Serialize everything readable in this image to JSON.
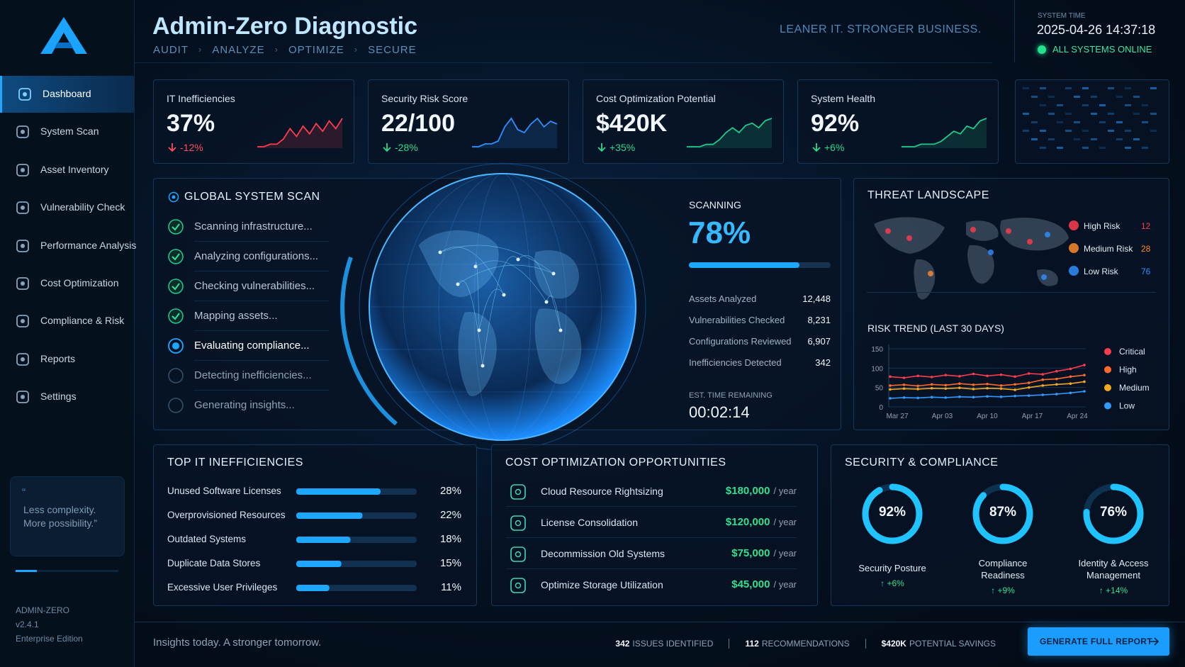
{
  "header": {
    "title": "Admin-Zero Diagnostic",
    "steps": [
      "AUDIT",
      "ANALYZE",
      "OPTIMIZE",
      "SECURE"
    ],
    "tagline": "LEANER IT. STRONGER BUSINESS.",
    "time_label": "SYSTEM TIME",
    "time": "2025-04-26 14:37:18",
    "status": "ALL SYSTEMS ONLINE"
  },
  "sidebar": {
    "nav": [
      "Dashboard",
      "System Scan",
      "Asset Inventory",
      "Vulnerability Check",
      "Performance Analysis",
      "Cost Optimization",
      "Compliance & Risk",
      "Reports",
      "Settings"
    ],
    "active": 0,
    "quote": [
      "Less complexity.",
      "More possibility.”"
    ],
    "product": "ADMIN-ZERO",
    "version": "v2.4.1",
    "edition": "Enterprise Edition"
  },
  "kpis": [
    {
      "label": "IT Inefficiencies",
      "value": "37%",
      "change": "-12%",
      "change_color": "#ff4d5e",
      "spark_color": "#ff3b4e",
      "trend": [
        2,
        2,
        3,
        3,
        5,
        9,
        6,
        10,
        7,
        11,
        8,
        12,
        9,
        13
      ]
    },
    {
      "label": "Security Risk Score",
      "value": "22/100",
      "change": "-28%",
      "change_color": "#2bd98a",
      "spark_color": "#2f8fff",
      "trend": [
        2,
        2,
        3,
        3,
        4,
        9,
        12,
        8,
        7,
        10,
        12,
        9,
        11,
        10
      ]
    },
    {
      "label": "Cost Optimization Potential",
      "value": "$420K",
      "change": "+35%",
      "change_color": "#2bd98a",
      "spark_color": "#21c98a",
      "trend": [
        2,
        2,
        2,
        3,
        3,
        5,
        8,
        10,
        8,
        11,
        12,
        10,
        13,
        14
      ]
    },
    {
      "label": "System Health",
      "value": "92%",
      "change": "+6%",
      "change_color": "#2bd98a",
      "spark_color": "#21c98a",
      "trend": [
        2,
        2,
        2,
        3,
        3,
        3,
        4,
        6,
        8,
        7,
        10,
        9,
        12,
        13
      ]
    }
  ],
  "scan": {
    "title": "GLOBAL SYSTEM SCAN",
    "steps": [
      {
        "label": "Scanning infrastructure...",
        "status": "done"
      },
      {
        "label": "Analyzing configurations...",
        "status": "done"
      },
      {
        "label": "Checking vulnerabilities...",
        "status": "done"
      },
      {
        "label": "Mapping assets...",
        "status": "done"
      },
      {
        "label": "Evaluating compliance...",
        "status": "active"
      },
      {
        "label": "Detecting inefficiencies...",
        "status": "pending"
      },
      {
        "label": "Generating insights...",
        "status": "pending"
      }
    ],
    "status_label": "SCANNING",
    "progress": {
      "value": 78,
      "label": "78%"
    },
    "stats": [
      {
        "label": "Assets Analyzed",
        "value": "12,448"
      },
      {
        "label": "Vulnerabilities Checked",
        "value": "8,231"
      },
      {
        "label": "Configurations Reviewed",
        "value": "6,907"
      },
      {
        "label": "Inefficiencies Detected",
        "value": "342"
      }
    ],
    "eta_label": "EST. TIME REMAINING",
    "eta": "00:02:14"
  },
  "threats": {
    "title": "THREAT LANDSCAPE",
    "levels": [
      {
        "label": "High Risk",
        "count": "12",
        "color": "#ff3b4e"
      },
      {
        "label": "Medium Risk",
        "count": "28",
        "color": "#ff8a2a"
      },
      {
        "label": "Low Risk",
        "count": "76",
        "color": "#2f8fff"
      }
    ]
  },
  "risk_trend": {
    "title": "RISK TREND (LAST 30 DAYS)",
    "ylim": [
      0,
      150
    ],
    "yticks": [
      0,
      50,
      100,
      150
    ],
    "x_labels": [
      "Mar 27",
      "Apr 03",
      "Apr 10",
      "Apr 17",
      "Apr 24"
    ],
    "series": [
      {
        "name": "Critical",
        "color": "#ff3b4e",
        "values": [
          78,
          75,
          80,
          77,
          82,
          79,
          85,
          80,
          83,
          78,
          86,
          84,
          92,
          98,
          108
        ]
      },
      {
        "name": "High",
        "color": "#ff6a2a",
        "values": [
          55,
          57,
          54,
          58,
          56,
          60,
          57,
          59,
          55,
          58,
          62,
          70,
          72,
          78,
          82
        ]
      },
      {
        "name": "Medium",
        "color": "#f5a623",
        "values": [
          45,
          47,
          46,
          48,
          47,
          49,
          46,
          48,
          47,
          44,
          50,
          55,
          58,
          60,
          65
        ]
      },
      {
        "name": "Low",
        "color": "#2f9bff",
        "values": [
          22,
          24,
          23,
          25,
          24,
          26,
          25,
          27,
          26,
          28,
          29,
          31,
          33,
          36,
          40
        ]
      }
    ]
  },
  "inefficiencies": {
    "title": "TOP IT INEFFICIENCIES",
    "items": [
      {
        "label": "Unused Software Licenses",
        "value": 28,
        "value_label": "28%"
      },
      {
        "label": "Overprovisioned Resources",
        "value": 22,
        "value_label": "22%"
      },
      {
        "label": "Outdated Systems",
        "value": 18,
        "value_label": "18%"
      },
      {
        "label": "Duplicate Data Stores",
        "value": 15,
        "value_label": "15%"
      },
      {
        "label": "Excessive User Privileges",
        "value": 11,
        "value_label": "11%"
      }
    ]
  },
  "cost": {
    "title": "COST OPTIMIZATION OPPORTUNITIES",
    "items": [
      {
        "label": "Cloud Resource Rightsizing",
        "amount": "$180,000",
        "unit": "/ year"
      },
      {
        "label": "License Consolidation",
        "amount": "$120,000",
        "unit": "/ year"
      },
      {
        "label": "Decommission Old Systems",
        "amount": "$75,000",
        "unit": "/ year"
      },
      {
        "label": "Optimize Storage Utilization",
        "amount": "$45,000",
        "unit": "/ year"
      }
    ]
  },
  "security": {
    "title": "SECURITY & COMPLIANCE",
    "items": [
      {
        "name": "Security Posture",
        "value": 92,
        "value_label": "92%",
        "change": "+6%"
      },
      {
        "name": "Compliance Readiness",
        "value": 87,
        "value_label": "87%",
        "change": "+9%"
      },
      {
        "name": "Identity & Access Management",
        "value": 76,
        "value_label": "76%",
        "change": "+14%"
      }
    ]
  },
  "footer": {
    "tagline": "Insights today. A stronger tomorrow.",
    "stats": [
      {
        "value": "342",
        "label": "ISSUES IDENTIFIED"
      },
      {
        "value": "112",
        "label": "RECOMMENDATIONS"
      },
      {
        "value": "$420K",
        "label": "POTENTIAL SAVINGS"
      }
    ],
    "button": "GENERATE FULL REPORT"
  }
}
